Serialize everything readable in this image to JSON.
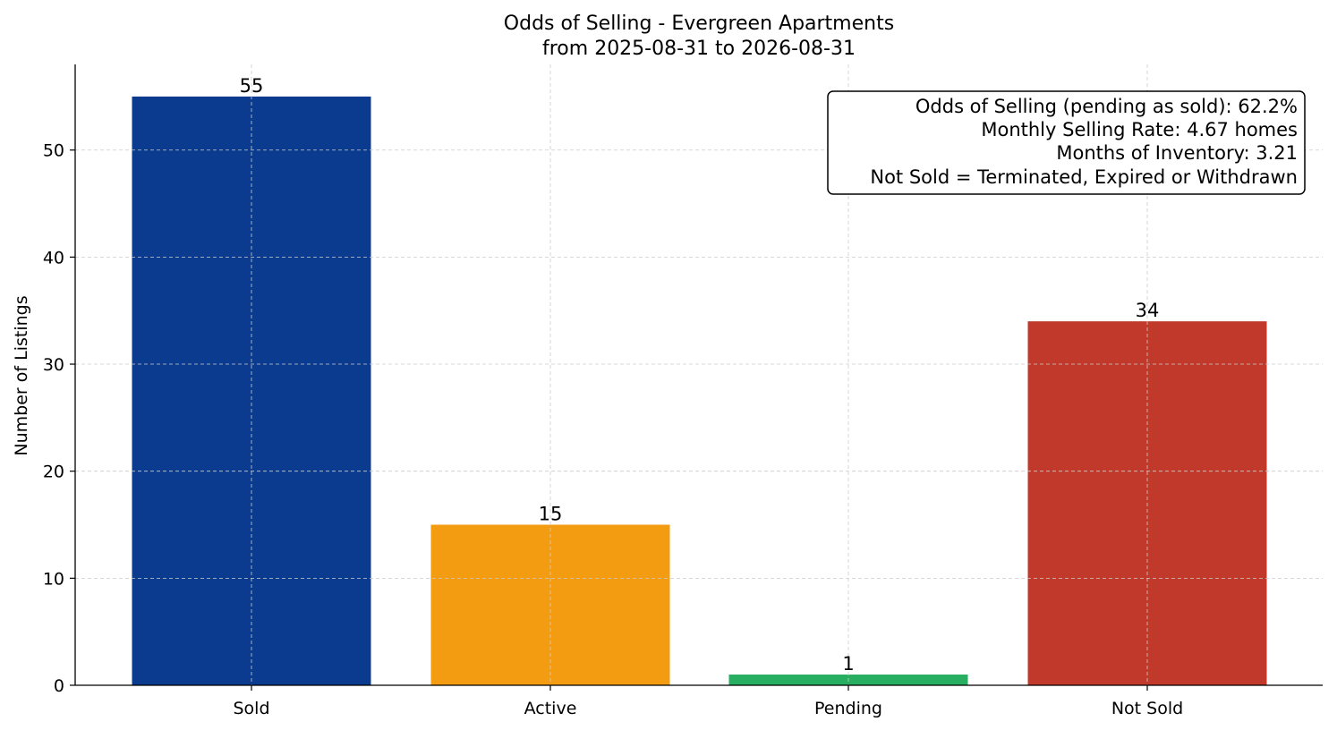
{
  "chart_data": {
    "type": "bar",
    "title": "Odds of Selling - Evergreen Apartments",
    "subtitle": "from 2025-08-31 to 2026-08-31",
    "xlabel": "",
    "ylabel": "Number of Listings",
    "categories": [
      "Sold",
      "Active",
      "Pending",
      "Not Sold"
    ],
    "values": [
      55,
      15,
      1,
      34
    ],
    "colors": [
      "#0b3b8f",
      "#f39c12",
      "#27ae60",
      "#c0392b"
    ],
    "ylim": [
      0,
      58
    ],
    "yticks": [
      0,
      10,
      20,
      30,
      40,
      50
    ],
    "grid": true,
    "annotation": {
      "lines": [
        "Odds of Selling (pending as sold): 62.2%",
        "Monthly Selling Rate: 4.67 homes",
        "Months of Inventory: 3.21",
        "Not Sold = Terminated, Expired or Withdrawn"
      ],
      "placement": "top-right"
    }
  }
}
